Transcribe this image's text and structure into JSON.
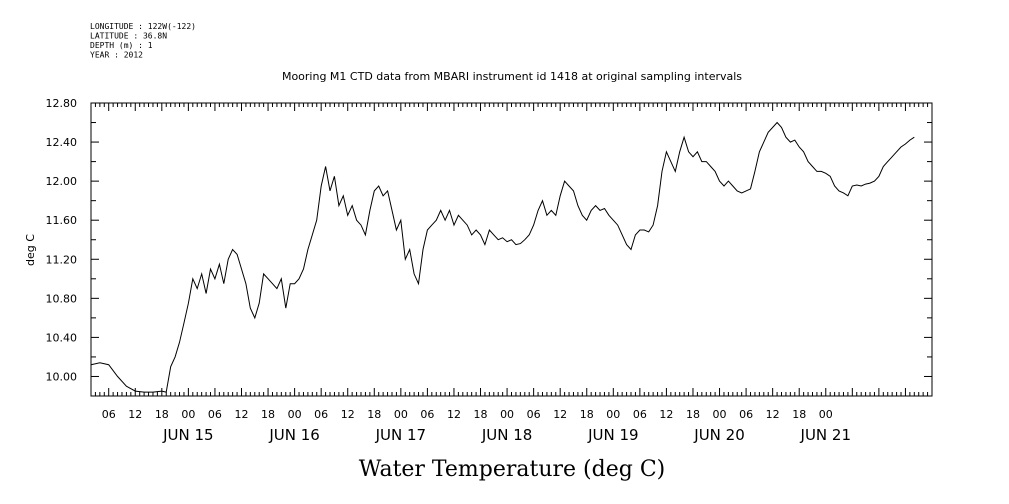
{
  "header": {
    "meta_lines": [
      "LONGITUDE : 122W(-122)",
      "LATITUDE : 36.8N",
      "DEPTH (m) : 1",
      "YEAR : 2012"
    ],
    "title": "Mooring M1 CTD data from MBARI instrument id 1418 at original sampling intervals"
  },
  "chart_data": {
    "type": "line",
    "title": "Mooring M1 CTD data from MBARI instrument id 1418 at original sampling intervals",
    "xlabel": "Water Temperature (deg C)",
    "ylabel": "deg C",
    "x_unit": "hours",
    "xlim": [
      "JUN 14 02:00",
      "JUN 22 00:00"
    ],
    "ylim": [
      9.8,
      12.8
    ],
    "y_ticks": [
      "10.00",
      "10.40",
      "10.80",
      "11.20",
      "11.60",
      "12.00",
      "12.40",
      "12.80"
    ],
    "x_hour_ticks": [
      "06",
      "12",
      "18",
      "00",
      "06",
      "12",
      "18",
      "00",
      "06",
      "12",
      "18",
      "00",
      "06",
      "12",
      "18",
      "00",
      "06",
      "12",
      "18",
      "00",
      "06",
      "12",
      "18",
      "00",
      "06",
      "12",
      "18",
      "00"
    ],
    "x_day_labels": [
      "JUN 15",
      "JUN 16",
      "JUN 17",
      "JUN 18",
      "JUN 19",
      "JUN 20",
      "JUN 21"
    ],
    "series": [
      {
        "values": [
          [
            0,
            10.12
          ],
          [
            2,
            10.14
          ],
          [
            4,
            10.12
          ],
          [
            6,
            10.0
          ],
          [
            8,
            9.9
          ],
          [
            10,
            9.85
          ],
          [
            12,
            9.84
          ],
          [
            14,
            9.84
          ],
          [
            16,
            9.85
          ],
          [
            17,
            9.84
          ],
          [
            18,
            10.1
          ],
          [
            19,
            10.2
          ],
          [
            20,
            10.35
          ],
          [
            21,
            10.55
          ],
          [
            22,
            10.75
          ],
          [
            23,
            11.0
          ],
          [
            24,
            10.9
          ],
          [
            25,
            11.05
          ],
          [
            26,
            10.85
          ],
          [
            27,
            11.1
          ],
          [
            28,
            11.0
          ],
          [
            29,
            11.15
          ],
          [
            30,
            10.95
          ],
          [
            31,
            11.2
          ],
          [
            32,
            11.3
          ],
          [
            33,
            11.25
          ],
          [
            34,
            11.1
          ],
          [
            35,
            10.95
          ],
          [
            36,
            10.7
          ],
          [
            37,
            10.6
          ],
          [
            38,
            10.75
          ],
          [
            39,
            11.05
          ],
          [
            40,
            11.0
          ],
          [
            41,
            10.95
          ],
          [
            42,
            10.9
          ],
          [
            43,
            11.0
          ],
          [
            44,
            10.7
          ],
          [
            45,
            10.95
          ],
          [
            46,
            10.95
          ],
          [
            47,
            11.0
          ],
          [
            48,
            11.1
          ],
          [
            49,
            11.3
          ],
          [
            50,
            11.45
          ],
          [
            51,
            11.6
          ],
          [
            52,
            11.95
          ],
          [
            53,
            12.15
          ],
          [
            54,
            11.9
          ],
          [
            55,
            12.05
          ],
          [
            56,
            11.75
          ],
          [
            57,
            11.85
          ],
          [
            58,
            11.65
          ],
          [
            59,
            11.75
          ],
          [
            60,
            11.6
          ],
          [
            61,
            11.55
          ],
          [
            62,
            11.45
          ],
          [
            63,
            11.7
          ],
          [
            64,
            11.9
          ],
          [
            65,
            11.95
          ],
          [
            66,
            11.85
          ],
          [
            67,
            11.9
          ],
          [
            68,
            11.7
          ],
          [
            69,
            11.5
          ],
          [
            70,
            11.6
          ],
          [
            71,
            11.2
          ],
          [
            72,
            11.3
          ],
          [
            73,
            11.05
          ],
          [
            74,
            10.95
          ],
          [
            75,
            11.3
          ],
          [
            76,
            11.5
          ],
          [
            77,
            11.55
          ],
          [
            78,
            11.6
          ],
          [
            79,
            11.7
          ],
          [
            80,
            11.6
          ],
          [
            81,
            11.7
          ],
          [
            82,
            11.55
          ],
          [
            83,
            11.65
          ],
          [
            84,
            11.6
          ],
          [
            85,
            11.55
          ],
          [
            86,
            11.45
          ],
          [
            87,
            11.5
          ],
          [
            88,
            11.45
          ],
          [
            89,
            11.35
          ],
          [
            90,
            11.5
          ],
          [
            91,
            11.45
          ],
          [
            92,
            11.4
          ],
          [
            93,
            11.42
          ],
          [
            94,
            11.38
          ],
          [
            95,
            11.4
          ],
          [
            96,
            11.35
          ],
          [
            97,
            11.36
          ],
          [
            98,
            11.4
          ],
          [
            99,
            11.45
          ],
          [
            100,
            11.55
          ],
          [
            101,
            11.7
          ],
          [
            102,
            11.8
          ],
          [
            103,
            11.65
          ],
          [
            104,
            11.7
          ],
          [
            105,
            11.65
          ],
          [
            106,
            11.85
          ],
          [
            107,
            12.0
          ],
          [
            108,
            11.95
          ],
          [
            109,
            11.9
          ],
          [
            110,
            11.75
          ],
          [
            111,
            11.65
          ],
          [
            112,
            11.6
          ],
          [
            113,
            11.7
          ],
          [
            114,
            11.75
          ],
          [
            115,
            11.7
          ],
          [
            116,
            11.72
          ],
          [
            117,
            11.65
          ],
          [
            118,
            11.6
          ],
          [
            119,
            11.55
          ],
          [
            120,
            11.45
          ],
          [
            121,
            11.35
          ],
          [
            122,
            11.3
          ],
          [
            123,
            11.45
          ],
          [
            124,
            11.5
          ],
          [
            125,
            11.5
          ],
          [
            126,
            11.48
          ],
          [
            127,
            11.55
          ],
          [
            128,
            11.75
          ],
          [
            129,
            12.1
          ],
          [
            130,
            12.3
          ],
          [
            131,
            12.2
          ],
          [
            132,
            12.1
          ],
          [
            133,
            12.3
          ],
          [
            134,
            12.45
          ],
          [
            135,
            12.3
          ],
          [
            136,
            12.25
          ],
          [
            137,
            12.3
          ],
          [
            138,
            12.2
          ],
          [
            139,
            12.2
          ],
          [
            140,
            12.15
          ],
          [
            141,
            12.1
          ],
          [
            142,
            12.0
          ],
          [
            143,
            11.95
          ],
          [
            144,
            12.0
          ],
          [
            145,
            11.95
          ],
          [
            146,
            11.9
          ],
          [
            147,
            11.88
          ],
          [
            148,
            11.9
          ],
          [
            149,
            11.92
          ],
          [
            150,
            12.1
          ],
          [
            151,
            12.3
          ],
          [
            152,
            12.4
          ],
          [
            153,
            12.5
          ],
          [
            154,
            12.55
          ],
          [
            155,
            12.6
          ],
          [
            156,
            12.55
          ],
          [
            157,
            12.45
          ],
          [
            158,
            12.4
          ],
          [
            159,
            12.42
          ],
          [
            160,
            12.35
          ],
          [
            161,
            12.3
          ],
          [
            162,
            12.2
          ],
          [
            163,
            12.15
          ],
          [
            164,
            12.1
          ],
          [
            165,
            12.1
          ],
          [
            166,
            12.08
          ],
          [
            167,
            12.05
          ],
          [
            168,
            11.95
          ],
          [
            169,
            11.9
          ],
          [
            170,
            11.88
          ],
          [
            171,
            11.85
          ],
          [
            172,
            11.95
          ],
          [
            173,
            11.96
          ],
          [
            174,
            11.95
          ],
          [
            175,
            11.97
          ],
          [
            176,
            11.98
          ],
          [
            177,
            12.0
          ],
          [
            178,
            12.05
          ],
          [
            179,
            12.15
          ],
          [
            180,
            12.2
          ],
          [
            181,
            12.25
          ],
          [
            182,
            12.3
          ],
          [
            183,
            12.35
          ],
          [
            184,
            12.38
          ],
          [
            185,
            12.42
          ],
          [
            186,
            12.45
          ]
        ]
      }
    ],
    "grid": false,
    "line_color": "#000000"
  }
}
